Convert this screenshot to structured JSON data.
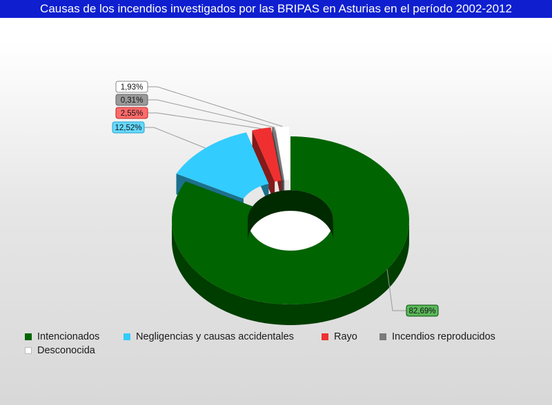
{
  "title": "Causas de los incendios investigados por las BRIPAS en Asturias en el período 2002-2012",
  "colors": {
    "title_bar": "#0f1fd0",
    "series": [
      "#006400",
      "#33ccff",
      "#f03030",
      "#7a7a7a",
      "#ffffff"
    ]
  },
  "chart_data": {
    "type": "pie",
    "variant": "3d-doughnut-exploded",
    "title": "Causas de los incendios investigados por las BRIPAS en Asturias en el período 2002-2012",
    "categories": [
      "Intencionados",
      "Negligencias y causas accidentales",
      "Rayo",
      "Incendios reproducidos",
      "Desconocida"
    ],
    "values": [
      82.69,
      12.52,
      2.55,
      0.31,
      1.93
    ],
    "labels": [
      "82,69%",
      "12,52%",
      "2,55%",
      "0,31%",
      "1,93%"
    ],
    "legend_position": "bottom"
  }
}
